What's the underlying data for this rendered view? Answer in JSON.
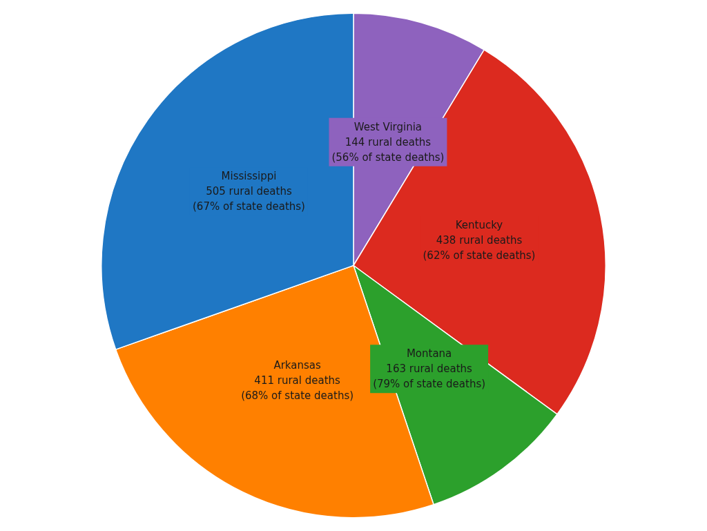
{
  "chart_data": {
    "type": "pie",
    "categories": [
      "West Virginia",
      "Kentucky",
      "Montana",
      "Arkansas",
      "Mississippi"
    ],
    "values": [
      144,
      438,
      163,
      411,
      505
    ],
    "colors": [
      "#8e62be",
      "#dc2a1f",
      "#2ca02c",
      "#ff8000",
      "#1f77c4"
    ],
    "value_labels": [
      "144 rural deaths\n(56% of state deaths)",
      "438 rural deaths\n(62% of state deaths)",
      "163 rural deaths\n(79% of state deaths)",
      "411 rural deaths\n(68% of state deaths)",
      "505 rural deaths\n(67% of state deaths)"
    ],
    "legend": false
  }
}
